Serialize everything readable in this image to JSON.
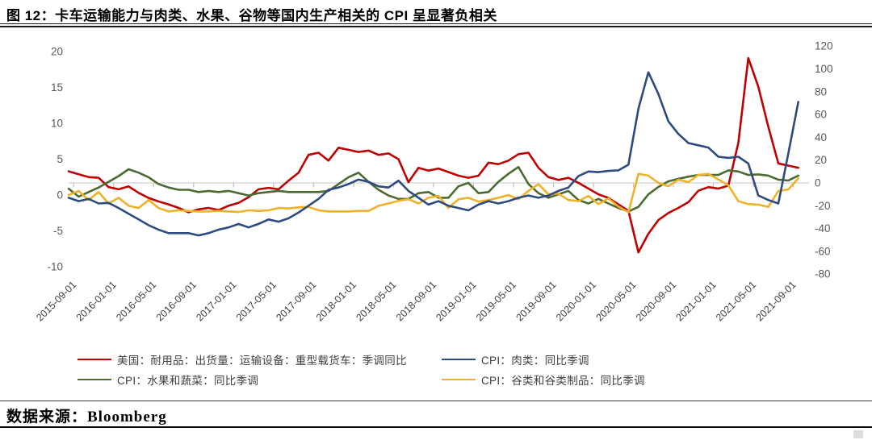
{
  "title": "图 12：卡车运输能力与肉类、水果、谷物等国内生产相关的 CPI 呈显著负相关",
  "source": {
    "label": "数据来源：Bloomberg"
  },
  "chart_data": {
    "type": "line",
    "title": "图 12：卡车运输能力与肉类、水果、谷物等国内生产相关的 CPI 呈显著负相关",
    "grid": "single horizontal gridline at right-axis zero",
    "legend_position": "bottom",
    "x": [
      "2015-09",
      "2015-10",
      "2015-11",
      "2015-12",
      "2016-01",
      "2016-02",
      "2016-03",
      "2016-04",
      "2016-05",
      "2016-06",
      "2016-07",
      "2016-08",
      "2016-09",
      "2016-10",
      "2016-11",
      "2016-12",
      "2017-01",
      "2017-02",
      "2017-03",
      "2017-04",
      "2017-05",
      "2017-06",
      "2017-07",
      "2017-08",
      "2017-09",
      "2017-10",
      "2017-11",
      "2017-12",
      "2018-01",
      "2018-02",
      "2018-03",
      "2018-04",
      "2018-05",
      "2018-06",
      "2018-07",
      "2018-08",
      "2018-09",
      "2018-10",
      "2018-11",
      "2018-12",
      "2019-01",
      "2019-02",
      "2019-03",
      "2019-04",
      "2019-05",
      "2019-06",
      "2019-07",
      "2019-08",
      "2019-09",
      "2019-10",
      "2019-11",
      "2019-12",
      "2020-01",
      "2020-02",
      "2020-03",
      "2020-04",
      "2020-05",
      "2020-06",
      "2020-07",
      "2020-08",
      "2020-09",
      "2020-10",
      "2020-11",
      "2020-12",
      "2021-01",
      "2021-02",
      "2021-03",
      "2021-04",
      "2021-05",
      "2021-06",
      "2021-07",
      "2021-08",
      "2021-09",
      "2021-10"
    ],
    "x_tick_labels": [
      "2015-09-01",
      "2016-01-01",
      "2016-05-01",
      "2016-09-01",
      "2017-01-01",
      "2017-05-01",
      "2017-09-01",
      "2018-01-01",
      "2018-05-01",
      "2018-09-01",
      "2019-01-01",
      "2019-05-01",
      "2019-09-01",
      "2020-01-01",
      "2020-05-01",
      "2020-09-01",
      "2021-01-01",
      "2021-05-01",
      "2021-09-01"
    ],
    "left_axis": {
      "ticks": [
        20,
        15,
        10,
        5,
        0,
        -5,
        -10
      ],
      "ylim": [
        -10,
        20
      ]
    },
    "right_axis": {
      "ticks": [
        120,
        100,
        80,
        60,
        40,
        20,
        0,
        -20,
        -40,
        -60,
        -80
      ],
      "ylim": [
        -80,
        120
      ]
    },
    "series": [
      {
        "name": "美国：耐用品：出货量：运输设备：重型载货车：季调同比",
        "axis": "left",
        "color": "#C00000",
        "values": [
          3.3,
          2.9,
          2.5,
          2.4,
          1.1,
          0.8,
          1.2,
          0.3,
          -0.4,
          -0.9,
          -1.3,
          -1.8,
          -2.4,
          -2.0,
          -1.8,
          -2.1,
          -1.5,
          -1.1,
          -0.3,
          0.8,
          1.0,
          0.8,
          2.0,
          3.1,
          5.6,
          5.9,
          4.8,
          6.6,
          6.3,
          6.0,
          6.2,
          5.6,
          5.8,
          5.0,
          1.8,
          3.8,
          3.4,
          3.7,
          3.2,
          2.7,
          2.4,
          2.7,
          4.5,
          4.3,
          4.8,
          5.7,
          5.9,
          3.8,
          2.5,
          2.1,
          2.4,
          1.7,
          0.9,
          0.1,
          -0.4,
          -1.3,
          -2.2,
          -8.0,
          -5.4,
          -3.5,
          -2.5,
          -1.8,
          -1.0,
          0.6,
          1.1,
          0.9,
          1.3,
          7.3,
          19.1,
          15.1,
          9.5,
          4.4,
          4.1,
          3.8
        ]
      },
      {
        "name": "CPI：肉类：同比季调",
        "axis": "right",
        "color": "#2E4B80",
        "values": [
          -13,
          -16,
          -14,
          -18,
          -17.5,
          -22,
          -27,
          -32,
          -37,
          -41,
          -44,
          -44,
          -44,
          -46,
          -44,
          -41,
          -39,
          -36,
          -39,
          -36,
          -32,
          -34,
          -31,
          -26,
          -20,
          -14,
          -6,
          -4,
          -1,
          3,
          1,
          -3,
          -4,
          2,
          -7,
          -13,
          -19,
          -16,
          -20,
          -22,
          -24,
          -19,
          -16,
          -18,
          -16,
          -13,
          -11,
          -13,
          -11,
          -7,
          -4,
          6,
          10,
          9.5,
          10.5,
          11,
          16,
          65,
          97,
          78,
          54,
          43,
          35,
          33,
          31,
          23,
          22,
          23,
          17,
          -11,
          -15,
          -18,
          26,
          71
        ]
      },
      {
        "name": "CPI：水果和蔬菜：同比季调",
        "axis": "right",
        "color": "#4C6B30",
        "values": [
          -5,
          -12,
          -8,
          -4,
          1,
          6,
          12,
          9,
          5,
          -1,
          -4,
          -6,
          -6,
          -8,
          -7,
          -8,
          -7,
          -9,
          -11,
          -9,
          -8,
          -7,
          -8,
          -8,
          -8,
          -8,
          -7,
          -1,
          5,
          9,
          1,
          -6,
          -11,
          -14,
          -14,
          -9,
          -8,
          -13,
          -13,
          -3,
          0,
          -9,
          -8,
          1,
          8,
          14,
          -1,
          -9,
          -13,
          -10,
          -7,
          -15,
          -18,
          -14,
          -18,
          -22,
          -25,
          -21,
          -10,
          -3.5,
          1.4,
          3.6,
          5.5,
          7,
          7,
          7,
          11,
          10,
          7,
          7.5,
          6.4,
          2.9,
          2.1,
          6.4
        ]
      },
      {
        "name": "CPI：谷类和谷类制品：同比季调",
        "axis": "right",
        "color": "#EFB228",
        "values": [
          -10.6,
          -7,
          -15,
          -8,
          -18,
          -13,
          -20,
          -22,
          -15,
          -22,
          -25,
          -24,
          -24.5,
          -25,
          -25,
          -24.5,
          -25,
          -25.5,
          -24,
          -24.5,
          -24,
          -22,
          -22.4,
          -21.4,
          -21,
          -24,
          -25,
          -25,
          -25,
          -24.5,
          -24.6,
          -20,
          -18,
          -15.7,
          -14.3,
          -18,
          -13,
          -11.4,
          -22,
          -14.3,
          -13,
          -16.4,
          -15,
          -13,
          -10.7,
          -14.3,
          -7,
          -1,
          -10,
          -9.3,
          -15,
          -16,
          -11.4,
          -18.6,
          -13.6,
          -20.7,
          -25.7,
          8,
          6.4,
          0,
          -2.9,
          2.9,
          0.7,
          7.1,
          7.9,
          3,
          -2.1,
          -16,
          -18.6,
          -19,
          -21,
          -7,
          -5.7,
          4
        ]
      }
    ]
  }
}
